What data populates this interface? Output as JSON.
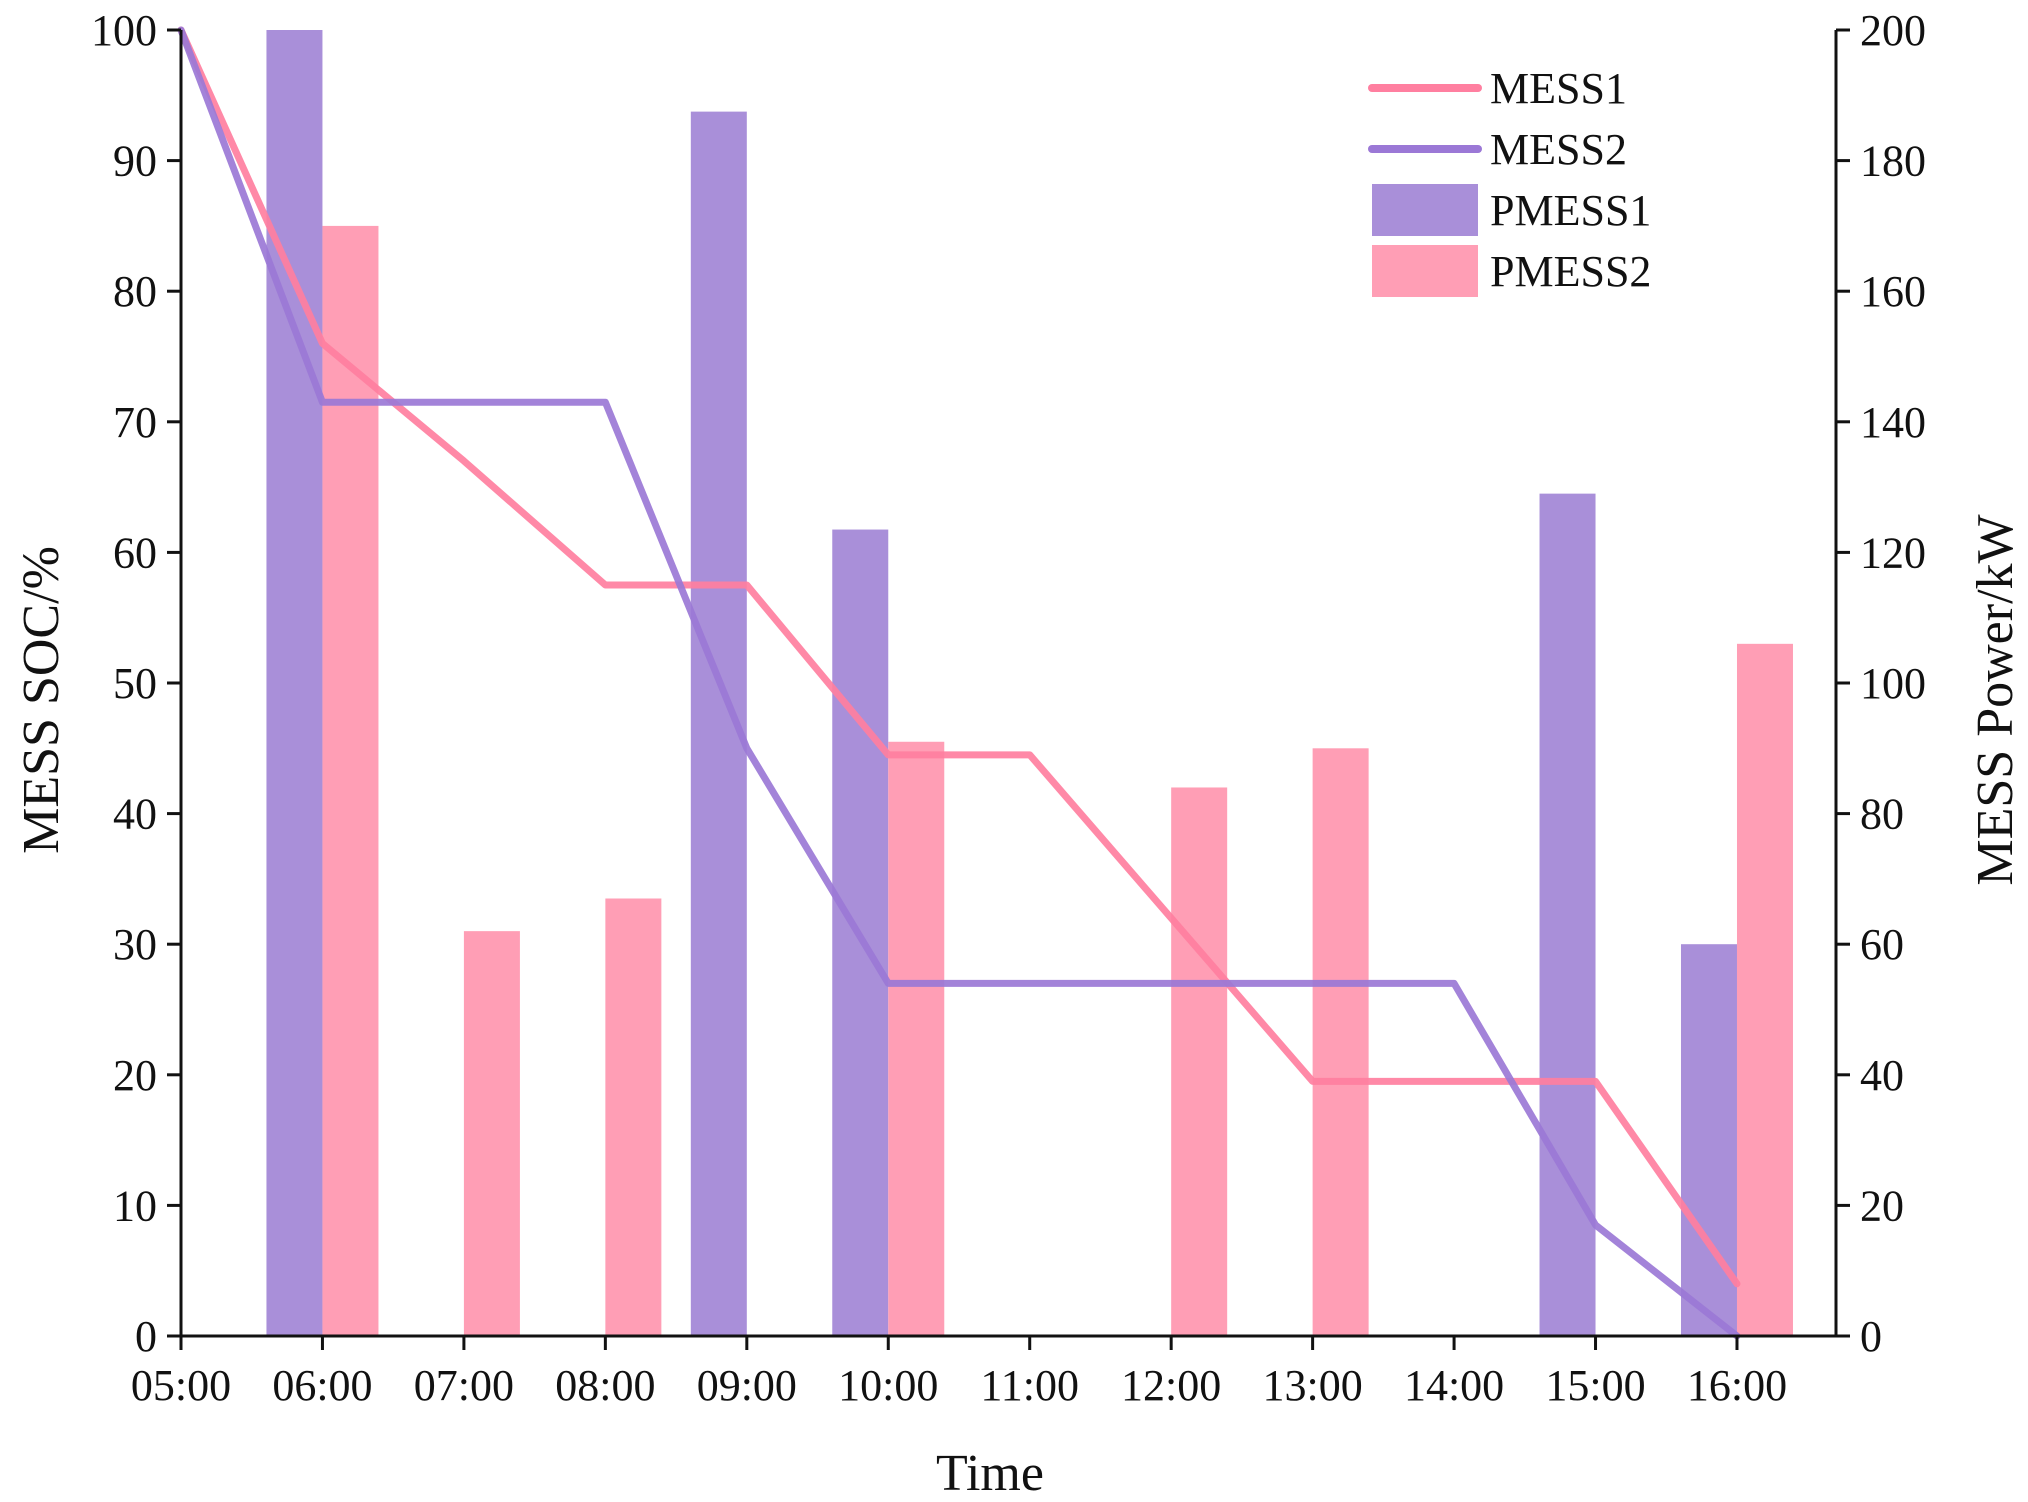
{
  "chart_data": {
    "type": "bar+line",
    "title": "",
    "xlabel": "Time",
    "ylabel_left": "MESS SOC/%",
    "ylabel_right": "MESS Power/kW",
    "x_ticks": [
      "05:00",
      "06:00",
      "07:00",
      "08:00",
      "09:00",
      "10:00",
      "11:00",
      "12:00",
      "13:00",
      "14:00",
      "15:00",
      "16:00"
    ],
    "ylim_left": [
      0,
      100
    ],
    "ylim_right": [
      0,
      200
    ],
    "y_ticks_left": [
      "0",
      "10",
      "20",
      "30",
      "40",
      "50",
      "60",
      "70",
      "80",
      "90",
      "100"
    ],
    "y_ticks_right": [
      "0",
      "20",
      "40",
      "60",
      "80",
      "100",
      "120",
      "140",
      "160",
      "180",
      "200"
    ],
    "legend_position": "top-right",
    "line_series": [
      {
        "name": "MESS1",
        "color": "#ff7fa0",
        "axis": "left",
        "values": [
          100,
          76,
          67,
          57.5,
          57.5,
          44.5,
          44.5,
          32,
          19.5,
          19.5,
          19.5,
          4
        ]
      },
      {
        "name": "MESS2",
        "color": "#9b78d6",
        "axis": "left",
        "values": [
          100,
          71.5,
          71.5,
          71.5,
          45,
          27,
          27,
          27,
          27,
          27,
          8.5,
          0
        ]
      }
    ],
    "bar_series": [
      {
        "name": "PMESS1",
        "color": "#a98fd9",
        "axis": "right",
        "offset": "left",
        "values": [
          0,
          200,
          0,
          0,
          187.5,
          123.5,
          0,
          0,
          0,
          0,
          129,
          60
        ]
      },
      {
        "name": "PMESS2",
        "color": "#ff9eb5",
        "axis": "right",
        "offset": "right",
        "values": [
          0,
          170,
          62,
          67,
          0,
          91,
          0,
          84,
          90,
          0,
          0,
          106
        ]
      }
    ]
  }
}
